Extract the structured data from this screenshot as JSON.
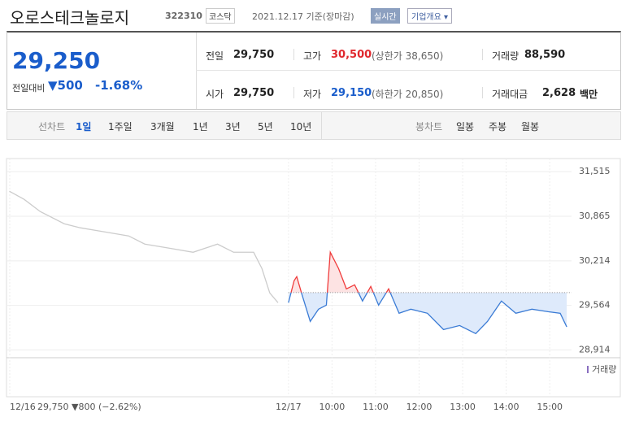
{
  "header": {
    "title": "오로스테크놀로지",
    "code": "322310",
    "market": "코스닥",
    "date": "2021.12.17 기준(장마감)",
    "realtime": "실시간",
    "overview": "기업개요"
  },
  "quote": {
    "price": "29,250",
    "change_label": "전일대비",
    "change": "▼500",
    "rate": "-1.68%"
  },
  "table": {
    "rows": [
      [
        [
          "전일",
          "29,750",
          ""
        ],
        [
          "고가",
          "30,500",
          "(상한가 38,650)"
        ],
        [
          "거래량",
          "88,590",
          ""
        ]
      ],
      [
        [
          "시가",
          "29,750",
          ""
        ],
        [
          "저가",
          "29,150",
          "(하한가 20,850)"
        ],
        [
          "거래대금",
          "2,628",
          "백만"
        ]
      ]
    ]
  },
  "tabs": {
    "line_label": "선차트",
    "line": [
      "1일",
      "1주일",
      "3개월",
      "1년",
      "3년",
      "5년",
      "10년"
    ],
    "candle_label": "봉차트",
    "candle": [
      "일봉",
      "주봉",
      "월봉"
    ]
  },
  "chart_data": {
    "type": "line",
    "prev_summary": "29,750 ▼800 (−2.62%)",
    "volume_label": "거래량",
    "xlim": [
      2.6,
      15.5
    ],
    "xticks": [
      {
        "value": 2.6,
        "label": "12/16"
      },
      {
        "value": 9,
        "label": "12/17"
      },
      {
        "value": 10,
        "label": "10:00"
      },
      {
        "value": 11,
        "label": "11:00"
      },
      {
        "value": 12,
        "label": "12:00"
      },
      {
        "value": 13,
        "label": "13:00"
      },
      {
        "value": 14,
        "label": "14:00"
      },
      {
        "value": 15,
        "label": "15:00"
      }
    ],
    "ylim": [
      28800,
      31600
    ],
    "yticks": [
      {
        "value": 31515,
        "label": "31,515"
      },
      {
        "value": 30865,
        "label": "30,865"
      },
      {
        "value": 30214,
        "label": "30,214"
      },
      {
        "value": 29564,
        "label": "29,564"
      },
      {
        "value": 28914,
        "label": "28,914"
      }
    ],
    "baseline": 29750,
    "up_color": "#f03c3c",
    "up_fill": "#fde3e3",
    "down_fill": "#deeafb",
    "series": [
      {
        "color": "#cccccc",
        "x": [
          2.59,
          2.93,
          3.3,
          3.85,
          4.22,
          4.78,
          5.33,
          5.7,
          6.26,
          6.81,
          7.37,
          7.74,
          8.2,
          8.39,
          8.57,
          8.76
        ],
        "values": [
          31230,
          31111,
          30933,
          30755,
          30696,
          30636,
          30577,
          30458,
          30399,
          30339,
          30458,
          30339,
          30339,
          30102,
          29746,
          29603
        ]
      },
      {
        "color": "#3a7bd5",
        "x": [
          9,
          9.13,
          9.19,
          9.31,
          9.5,
          9.69,
          9.87,
          9.96,
          10.15,
          10.33,
          10.52,
          10.7,
          10.89,
          11.07,
          11.3,
          11.54,
          11.81,
          12.19,
          12.56,
          12.93,
          13.3,
          13.57,
          13.89,
          14.22,
          14.59,
          14.96,
          15.24,
          15.39
        ],
        "values": [
          29603,
          29924,
          29983,
          29722,
          29330,
          29508,
          29567,
          30339,
          30102,
          29805,
          29864,
          29627,
          29840,
          29567,
          29805,
          29449,
          29508,
          29449,
          29211,
          29270,
          29152,
          29330,
          29627,
          29449,
          29508,
          29472,
          29449,
          29250
        ],
        "today": true
      }
    ]
  }
}
